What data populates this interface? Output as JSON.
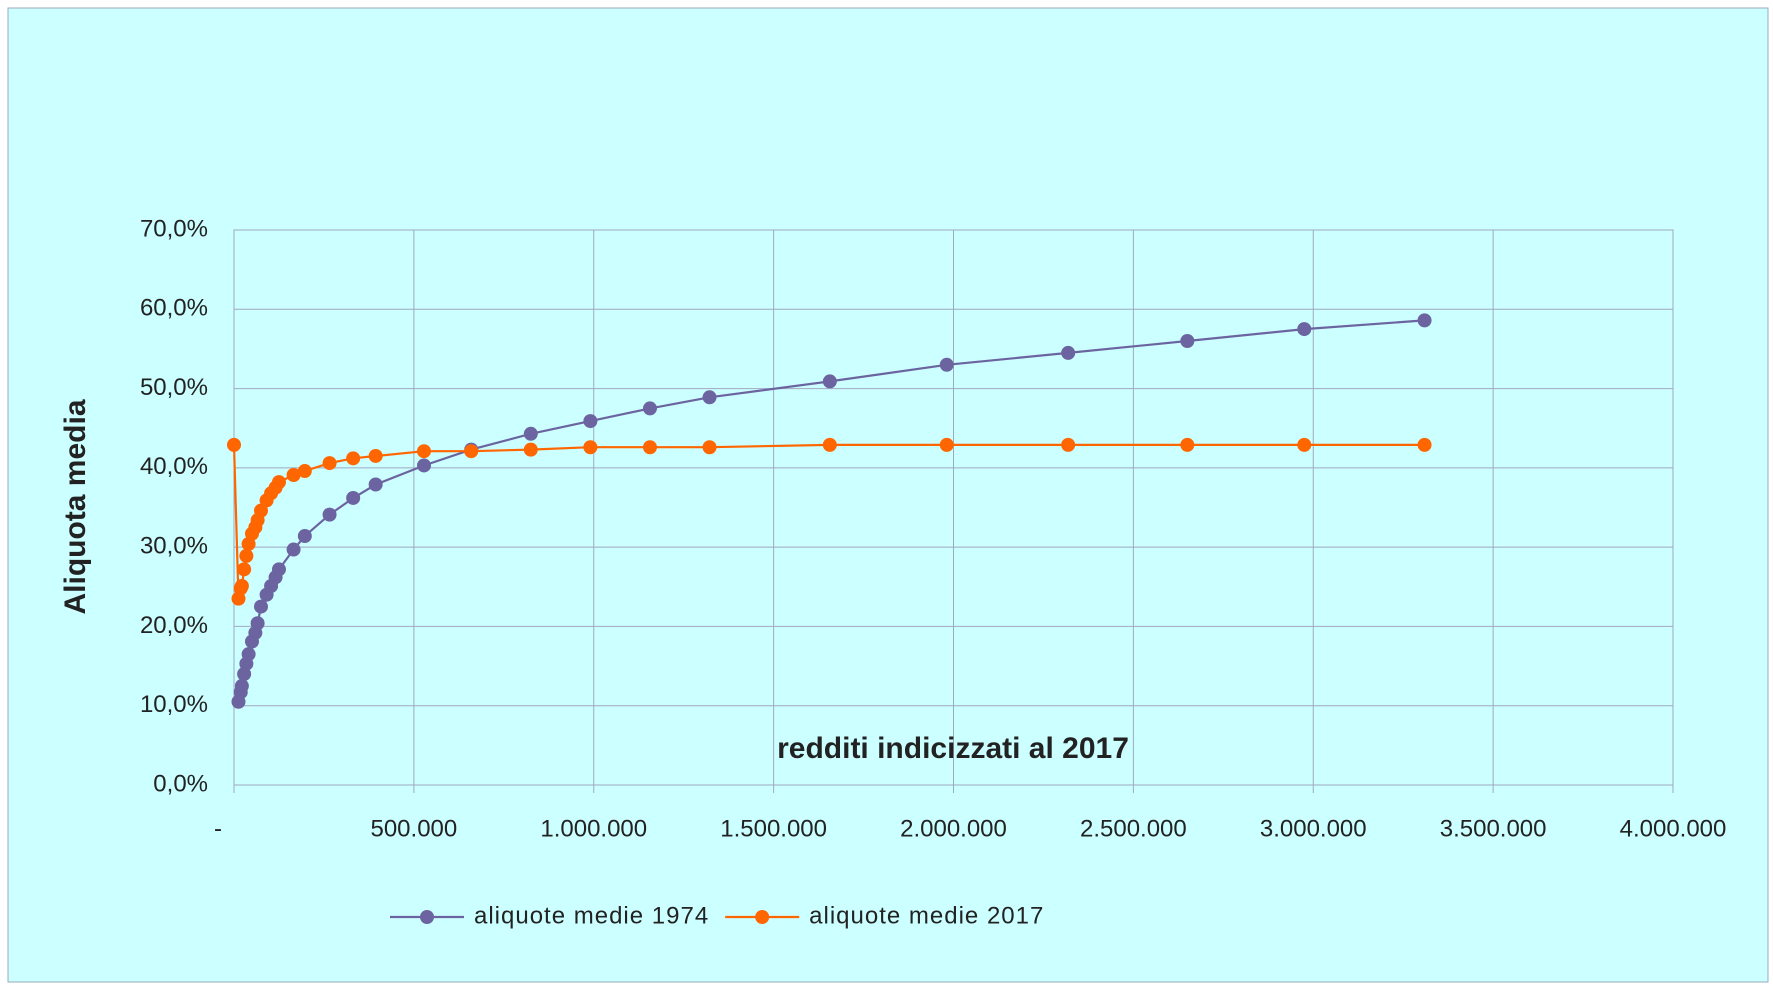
{
  "chart_data": {
    "type": "line",
    "x_label": "redditi indicizzati al 2017",
    "y_label": "Aliquota media",
    "xlim": [
      0,
      4000000
    ],
    "xticks": [
      {
        "value": 0,
        "label": "-"
      },
      {
        "value": 500000,
        "label": "500.000"
      },
      {
        "value": 1000000,
        "label": "1.000.000"
      },
      {
        "value": 1500000,
        "label": "1.500.000"
      },
      {
        "value": 2000000,
        "label": "2.000.000"
      },
      {
        "value": 2500000,
        "label": "2.500.000"
      },
      {
        "value": 3000000,
        "label": "3.000.000"
      },
      {
        "value": 3500000,
        "label": "3.500.000"
      },
      {
        "value": 4000000,
        "label": "4.000.000"
      }
    ],
    "ylim": [
      0,
      70
    ],
    "yticks": [
      {
        "value": 0,
        "label": "0,0%"
      },
      {
        "value": 10,
        "label": "10,0%"
      },
      {
        "value": 20,
        "label": "20,0%"
      },
      {
        "value": 30,
        "label": "30,0%"
      },
      {
        "value": 40,
        "label": "40,0%"
      },
      {
        "value": 50,
        "label": "50,0%"
      },
      {
        "value": 60,
        "label": "60,0%"
      },
      {
        "value": 70,
        "label": "70,0%"
      }
    ],
    "grid": true,
    "legend": "bottom",
    "series": [
      {
        "name": "aliquote medie 1974",
        "color": "#6b64a0",
        "x": [
          12500,
          18750,
          21875,
          28125,
          34375,
          40625,
          50000,
          59375,
          65625,
          75000,
          90625,
          103125,
          115625,
          125000,
          165625,
          196875,
          265625,
          331250,
          393750,
          528125,
          659375,
          825000,
          990625,
          1156250,
          1321875,
          1656250,
          1981250,
          2318750,
          2650000,
          2975000,
          3309375
        ],
        "values": [
          10.5,
          11.7,
          12.5,
          14.0,
          15.3,
          16.5,
          18.1,
          19.2,
          20.4,
          22.5,
          24.0,
          25.1,
          26.2,
          27.2,
          29.7,
          31.4,
          34.1,
          36.2,
          37.9,
          40.3,
          42.3,
          44.3,
          45.9,
          47.5,
          48.9,
          50.9,
          53.0,
          54.5,
          56.0,
          57.5,
          58.6
        ]
      },
      {
        "name": "aliquote medie 2017",
        "color": "#ff6600",
        "x": [
          0,
          12500,
          18750,
          21875,
          28125,
          34375,
          40625,
          50000,
          59375,
          65625,
          75000,
          90625,
          103125,
          115625,
          125000,
          165625,
          196875,
          265625,
          331250,
          393750,
          528125,
          659375,
          825000,
          990625,
          1156250,
          1321875,
          1656250,
          1981250,
          2318750,
          2650000,
          2975000,
          3309375
        ],
        "values": [
          42.9,
          23.5,
          24.8,
          25.1,
          27.2,
          28.9,
          30.4,
          31.7,
          32.5,
          33.4,
          34.6,
          35.9,
          36.8,
          37.5,
          38.2,
          39.1,
          39.6,
          40.6,
          41.2,
          41.5,
          42.1,
          42.1,
          42.3,
          42.6,
          42.6,
          42.6,
          42.9,
          42.9,
          42.9,
          42.9,
          42.9,
          42.9
        ]
      }
    ]
  }
}
